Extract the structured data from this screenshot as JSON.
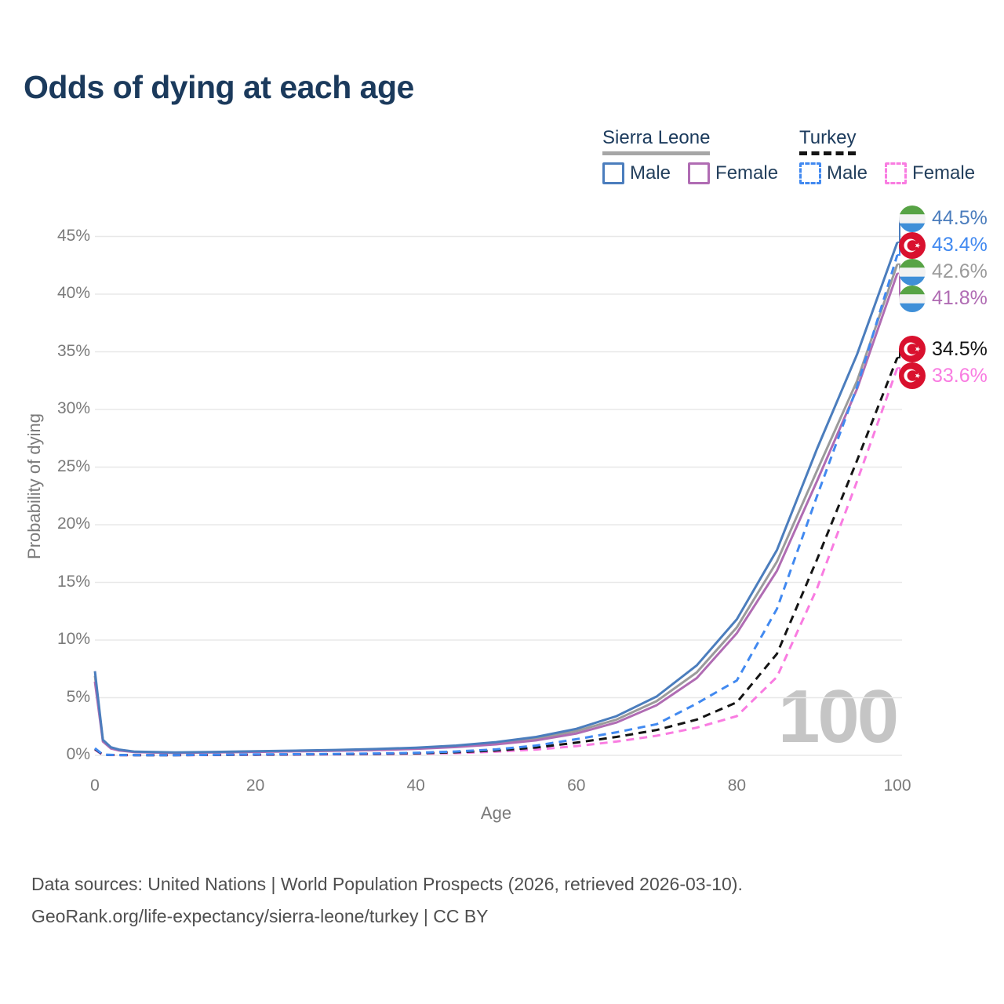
{
  "title": "Odds of dying at each age",
  "legend": {
    "groups": [
      {
        "country": "Sierra Leone",
        "line_style": "solid",
        "underline_color": "#a6a6a6",
        "items": [
          {
            "label": "Male",
            "color": "#4b7dbd",
            "dashed": false
          },
          {
            "label": "Female",
            "color": "#b06cb3",
            "dashed": false
          }
        ]
      },
      {
        "country": "Turkey",
        "line_style": "dashed",
        "underline_color": "#141414",
        "items": [
          {
            "label": "Male",
            "color": "#4189f0",
            "dashed": true
          },
          {
            "label": "Female",
            "color": "#f97ce1",
            "dashed": true
          }
        ]
      }
    ]
  },
  "chart_data": {
    "type": "line",
    "title": "Odds of dying at each age",
    "xlabel": "Age",
    "ylabel": "Probability of dying",
    "xlim": [
      0,
      100
    ],
    "ylim": [
      0,
      45
    ],
    "x_ticks": [
      0,
      20,
      40,
      60,
      80,
      100
    ],
    "y_ticks": [
      0,
      5,
      10,
      15,
      20,
      25,
      30,
      35,
      40,
      45
    ],
    "y_tick_suffix": "%",
    "grid": "horizontal",
    "legend_position": "top-right",
    "watermark": "100",
    "x": [
      0,
      1,
      2,
      3,
      5,
      10,
      15,
      20,
      25,
      30,
      35,
      40,
      45,
      50,
      55,
      60,
      65,
      70,
      75,
      80,
      85,
      90,
      95,
      100
    ],
    "series": [
      {
        "id": "sierra-leone-total",
        "name": "Sierra Leone Total",
        "color": "#9b9b9b",
        "dash": false,
        "flag": "sierra-leone",
        "end_label": "42.6%",
        "values": [
          6.9,
          1.28,
          0.65,
          0.46,
          0.3,
          0.23,
          0.28,
          0.33,
          0.38,
          0.43,
          0.5,
          0.61,
          0.78,
          1.05,
          1.45,
          2.1,
          3.1,
          4.7,
          7.2,
          11.1,
          16.8,
          24.7,
          32.5,
          42.6
        ]
      },
      {
        "id": "sierra-leone-female",
        "name": "Sierra Leone Female",
        "color": "#b06cb3",
        "dash": false,
        "flag": "sierra-leone",
        "end_label": "41.8%",
        "values": [
          6.4,
          1.2,
          0.6,
          0.42,
          0.28,
          0.21,
          0.26,
          0.3,
          0.35,
          0.4,
          0.46,
          0.56,
          0.72,
          0.95,
          1.3,
          1.9,
          2.85,
          4.35,
          6.7,
          10.6,
          16.0,
          23.8,
          31.8,
          41.8
        ]
      },
      {
        "id": "sierra-leone-male",
        "name": "Sierra Leone Male",
        "color": "#4b7dbd",
        "dash": false,
        "flag": "sierra-leone",
        "end_label": "44.5%",
        "values": [
          7.3,
          1.35,
          0.7,
          0.5,
          0.32,
          0.25,
          0.3,
          0.36,
          0.41,
          0.47,
          0.55,
          0.67,
          0.85,
          1.15,
          1.6,
          2.3,
          3.4,
          5.1,
          7.8,
          11.8,
          17.8,
          26.6,
          34.8,
          44.5
        ]
      },
      {
        "id": "turkey-female",
        "name": "Turkey Female",
        "color": "#f97ce1",
        "dash": true,
        "flag": "turkey",
        "end_label": "33.6%",
        "values": [
          0.48,
          0.05,
          0.03,
          0.02,
          0.015,
          0.015,
          0.03,
          0.04,
          0.06,
          0.08,
          0.1,
          0.14,
          0.2,
          0.32,
          0.5,
          0.8,
          1.2,
          1.7,
          2.4,
          3.4,
          6.8,
          14.5,
          23.8,
          33.6
        ]
      },
      {
        "id": "turkey-total",
        "name": "Turkey Total",
        "color": "#141414",
        "dash": true,
        "flag": "turkey",
        "end_label": "34.5%",
        "values": [
          0.55,
          0.05,
          0.035,
          0.025,
          0.02,
          0.02,
          0.04,
          0.06,
          0.08,
          0.1,
          0.13,
          0.18,
          0.27,
          0.42,
          0.68,
          1.1,
          1.6,
          2.2,
          3.1,
          4.6,
          8.8,
          17.0,
          25.6,
          34.5
        ]
      },
      {
        "id": "turkey-male",
        "name": "Turkey Male",
        "color": "#4189f0",
        "dash": true,
        "flag": "turkey",
        "end_label": "43.4%",
        "values": [
          0.62,
          0.06,
          0.04,
          0.03,
          0.02,
          0.02,
          0.05,
          0.08,
          0.1,
          0.12,
          0.16,
          0.22,
          0.33,
          0.52,
          0.85,
          1.4,
          2.0,
          2.7,
          4.5,
          6.5,
          12.7,
          22.5,
          32.0,
          43.4
        ]
      }
    ],
    "flag_colors": {
      "sierra_leone_green": "#57a345",
      "sierra_leone_white": "#f2f2f2",
      "sierra_leone_blue": "#3f8fd8",
      "turkey_red": "#d9112e",
      "turkey_white": "#ffffff"
    }
  },
  "footer": {
    "line1": "Data sources: United Nations | World Population Prospects (2026, retrieved 2026-03-10).",
    "line2": "GeoRank.org/life-expectancy/sierra-leone/turkey | CC BY"
  }
}
